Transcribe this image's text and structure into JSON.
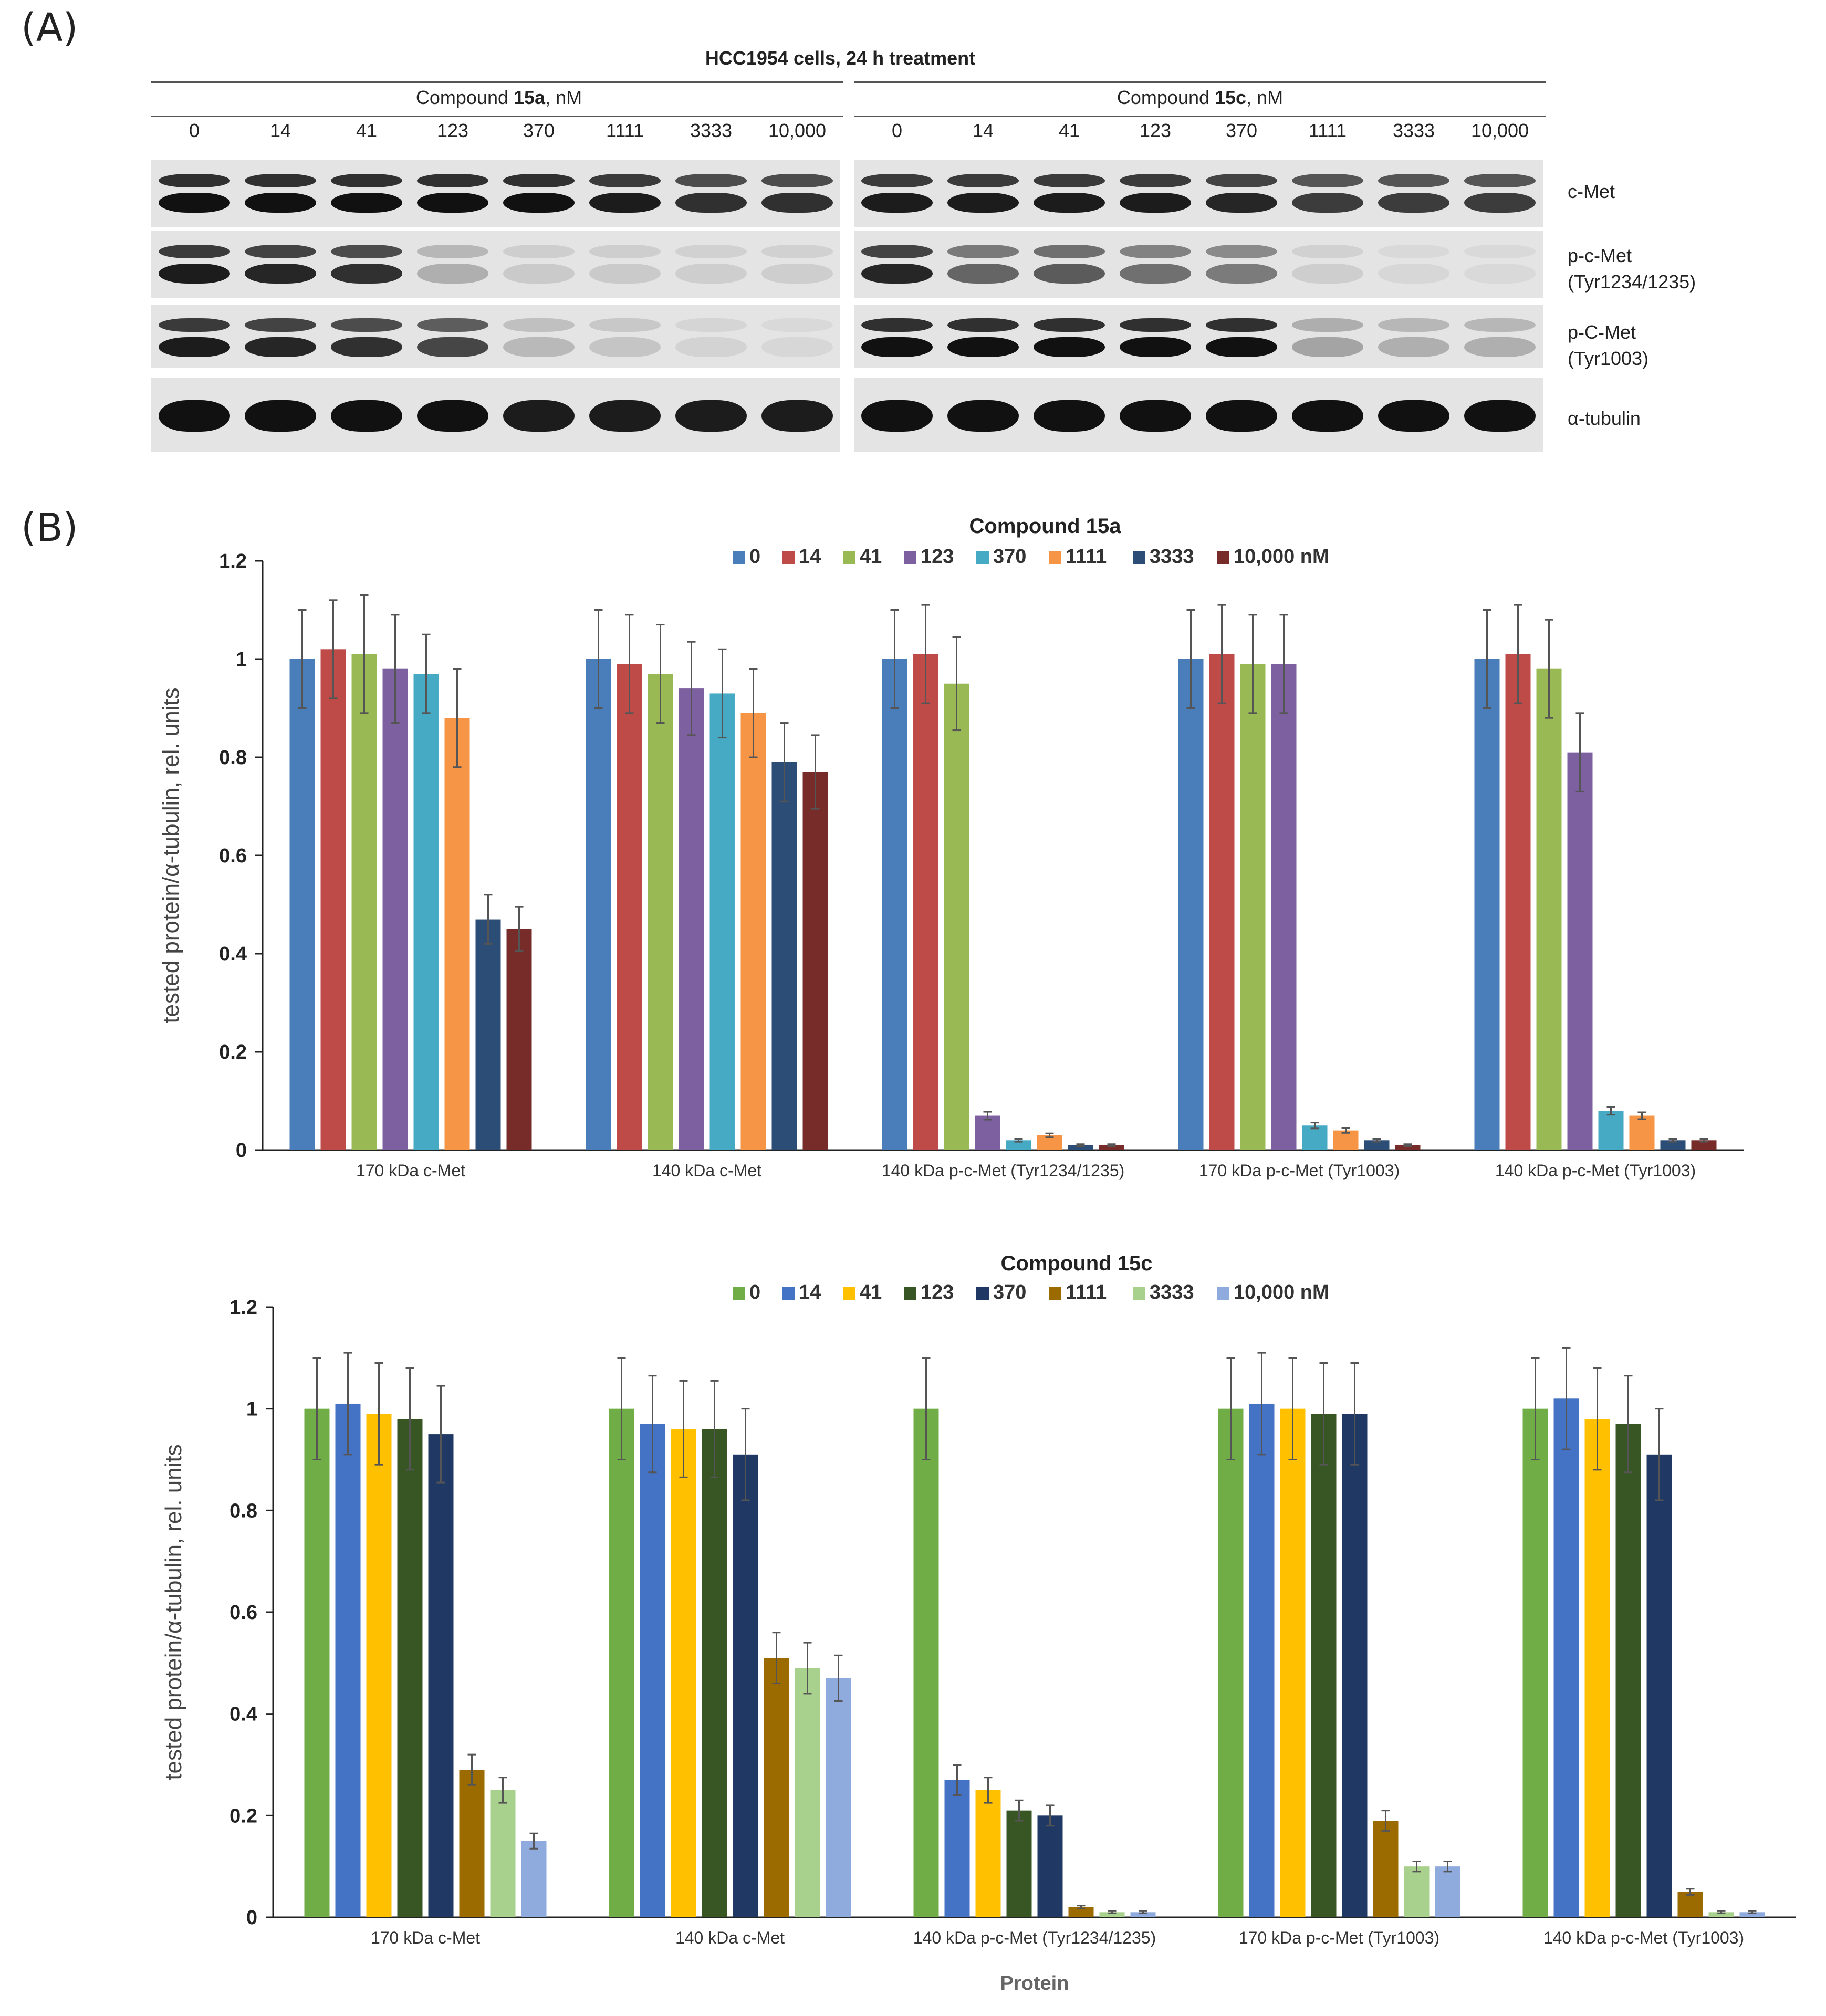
{
  "panel_a": {
    "letter": "(A)",
    "title": "HCC1954 cells, 24 h treatment",
    "left_group": {
      "prefix": "Compound ",
      "bold": "15a",
      "suffix": ", nM"
    },
    "right_group": {
      "prefix": "Compound ",
      "bold": "15c",
      "suffix": ", nM"
    },
    "concentrations": [
      "0",
      "14",
      "41",
      "123",
      "370",
      "1111",
      "3333",
      "10,000"
    ],
    "rows": [
      {
        "line1": "c-Met",
        "line2": ""
      },
      {
        "line1": "p-c-Met",
        "line2": "(Tyr1234/1235)"
      },
      {
        "line1": "p-C-Met",
        "line2": "(Tyr1003)"
      },
      {
        "line1": "α-tubulin",
        "line2": ""
      }
    ],
    "band_intensity_15a": [
      [
        1.0,
        1.0,
        1.0,
        1.0,
        1.0,
        0.95,
        0.85,
        0.85
      ],
      [
        0.95,
        0.9,
        0.85,
        0.25,
        0.12,
        0.12,
        0.1,
        0.1
      ],
      [
        0.95,
        0.9,
        0.85,
        0.75,
        0.2,
        0.15,
        0.08,
        0.06
      ],
      [
        1.0,
        1.0,
        1.0,
        1.0,
        0.95,
        0.95,
        0.95,
        0.95
      ]
    ],
    "band_intensity_15c": [
      [
        0.95,
        0.95,
        0.95,
        0.95,
        0.9,
        0.8,
        0.8,
        0.8
      ],
      [
        0.9,
        0.6,
        0.65,
        0.55,
        0.5,
        0.1,
        0.06,
        0.05
      ],
      [
        1.0,
        1.0,
        1.0,
        1.0,
        1.0,
        0.3,
        0.25,
        0.25
      ],
      [
        1.0,
        1.0,
        1.0,
        1.0,
        1.0,
        1.0,
        1.0,
        1.0
      ]
    ]
  },
  "panel_b": {
    "letter": "(B)"
  },
  "chart_data": [
    {
      "type": "bar",
      "title_prefix": "Compound ",
      "title_bold": "15a",
      "ylabel": "tested protein/α-tubulin, rel. units",
      "xlabel": "",
      "ylim": [
        0,
        1.2
      ],
      "yticks": [
        "0",
        "0.2",
        "0.4",
        "0.6",
        "0.8",
        "1",
        "1.2"
      ],
      "categories": [
        "170 kDa c-Met",
        "140 kDa c-Met",
        "140 kDa p-c-Met (Tyr1234/1235)",
        "170 kDa p-c-Met (Tyr1003)",
        "140 kDa p-c-Met (Tyr1003)"
      ],
      "legend_placement": "top",
      "series": [
        {
          "name": "0",
          "color": "#4a7ebb",
          "values": [
            1.0,
            1.0,
            1.0,
            1.0,
            1.0
          ],
          "errors": [
            0.1,
            0.1,
            0.1,
            0.1,
            0.1
          ]
        },
        {
          "name": "14",
          "color": "#be4b48",
          "values": [
            1.02,
            0.99,
            1.01,
            1.01,
            1.01
          ],
          "errors": [
            0.1,
            0.1,
            0.1,
            0.1,
            0.1
          ]
        },
        {
          "name": "41",
          "color": "#98b954",
          "values": [
            1.01,
            0.97,
            0.95,
            0.99,
            0.98
          ],
          "errors": [
            0.12,
            0.1,
            0.095,
            0.1,
            0.1
          ]
        },
        {
          "name": "123",
          "color": "#7d60a0",
          "values": [
            0.98,
            0.94,
            0.07,
            0.99,
            0.81
          ],
          "errors": [
            0.11,
            0.095,
            0.008,
            0.1,
            0.08
          ]
        },
        {
          "name": "370",
          "color": "#46aac5",
          "values": [
            0.97,
            0.93,
            0.02,
            0.05,
            0.08
          ],
          "errors": [
            0.08,
            0.09,
            0.003,
            0.006,
            0.008
          ]
        },
        {
          "name": "1111",
          "color": "#f69546",
          "values": [
            0.88,
            0.89,
            0.03,
            0.04,
            0.07
          ],
          "errors": [
            0.1,
            0.09,
            0.004,
            0.005,
            0.007
          ]
        },
        {
          "name": "3333",
          "color": "#2c4d75",
          "values": [
            0.47,
            0.79,
            0.01,
            0.02,
            0.02
          ],
          "errors": [
            0.05,
            0.08,
            0.002,
            0.003,
            0.003
          ]
        },
        {
          "name": "10,000 nM",
          "color": "#772c2a",
          "values": [
            0.45,
            0.77,
            0.01,
            0.01,
            0.02
          ],
          "errors": [
            0.045,
            0.075,
            0.002,
            0.002,
            0.003
          ]
        }
      ]
    },
    {
      "type": "bar",
      "title_prefix": "Compound ",
      "title_bold": "15c",
      "ylabel": "tested protein/α-tubulin, rel. units",
      "xlabel": "Protein",
      "ylim": [
        0,
        1.2
      ],
      "yticks": [
        "0",
        "0.2",
        "0.4",
        "0.6",
        "0.8",
        "1",
        "1.2"
      ],
      "categories": [
        "170 kDa c-Met",
        "140 kDa c-Met",
        "140 kDa p-c-Met (Tyr1234/1235)",
        "170 kDa p-c-Met (Tyr1003)",
        "140 kDa p-c-Met (Tyr1003)"
      ],
      "legend_placement": "top",
      "series": [
        {
          "name": "0",
          "color": "#70ad47",
          "values": [
            1.0,
            1.0,
            1.0,
            1.0,
            1.0
          ],
          "errors": [
            0.1,
            0.1,
            0.1,
            0.1,
            0.1
          ]
        },
        {
          "name": "14",
          "color": "#4472c4",
          "values": [
            1.01,
            0.97,
            0.27,
            1.01,
            1.02
          ],
          "errors": [
            0.1,
            0.095,
            0.03,
            0.1,
            0.1
          ]
        },
        {
          "name": "41",
          "color": "#ffc000",
          "values": [
            0.99,
            0.96,
            0.25,
            1.0,
            0.98
          ],
          "errors": [
            0.1,
            0.095,
            0.025,
            0.1,
            0.1
          ]
        },
        {
          "name": "123",
          "color": "#375623",
          "values": [
            0.98,
            0.96,
            0.21,
            0.99,
            0.97
          ],
          "errors": [
            0.1,
            0.095,
            0.02,
            0.1,
            0.095
          ]
        },
        {
          "name": "370",
          "color": "#203864",
          "values": [
            0.95,
            0.91,
            0.2,
            0.99,
            0.91
          ],
          "errors": [
            0.095,
            0.09,
            0.02,
            0.1,
            0.09
          ]
        },
        {
          "name": "1111",
          "color": "#9c6b00",
          "values": [
            0.29,
            0.51,
            0.02,
            0.19,
            0.05
          ],
          "errors": [
            0.03,
            0.05,
            0.003,
            0.02,
            0.006
          ]
        },
        {
          "name": "3333",
          "color": "#a9d18e",
          "values": [
            0.25,
            0.49,
            0.01,
            0.1,
            0.01
          ],
          "errors": [
            0.025,
            0.05,
            0.002,
            0.01,
            0.002
          ]
        },
        {
          "name": "10,000 nM",
          "color": "#8faadc",
          "values": [
            0.15,
            0.47,
            0.01,
            0.1,
            0.01
          ],
          "errors": [
            0.015,
            0.045,
            0.002,
            0.01,
            0.002
          ]
        }
      ]
    }
  ]
}
